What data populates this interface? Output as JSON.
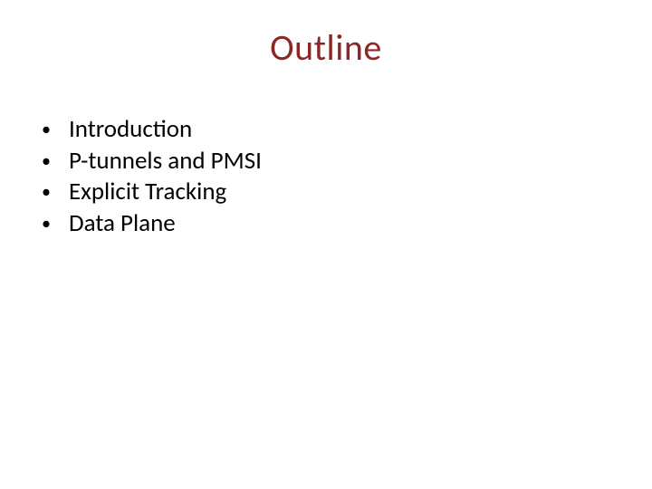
{
  "title": {
    "text": "Outline",
    "color": "#8b2826",
    "fontsize": 40
  },
  "bullets": {
    "items": [
      {
        "label": "Introduction"
      },
      {
        "label": "P-tunnels and PMSI"
      },
      {
        "label": "Explicit Tracking"
      },
      {
        "label": "Data Plane"
      }
    ],
    "text_color": "#000000",
    "bullet_color": "#000000",
    "fontsize": 27
  },
  "background_color": "#ffffff"
}
